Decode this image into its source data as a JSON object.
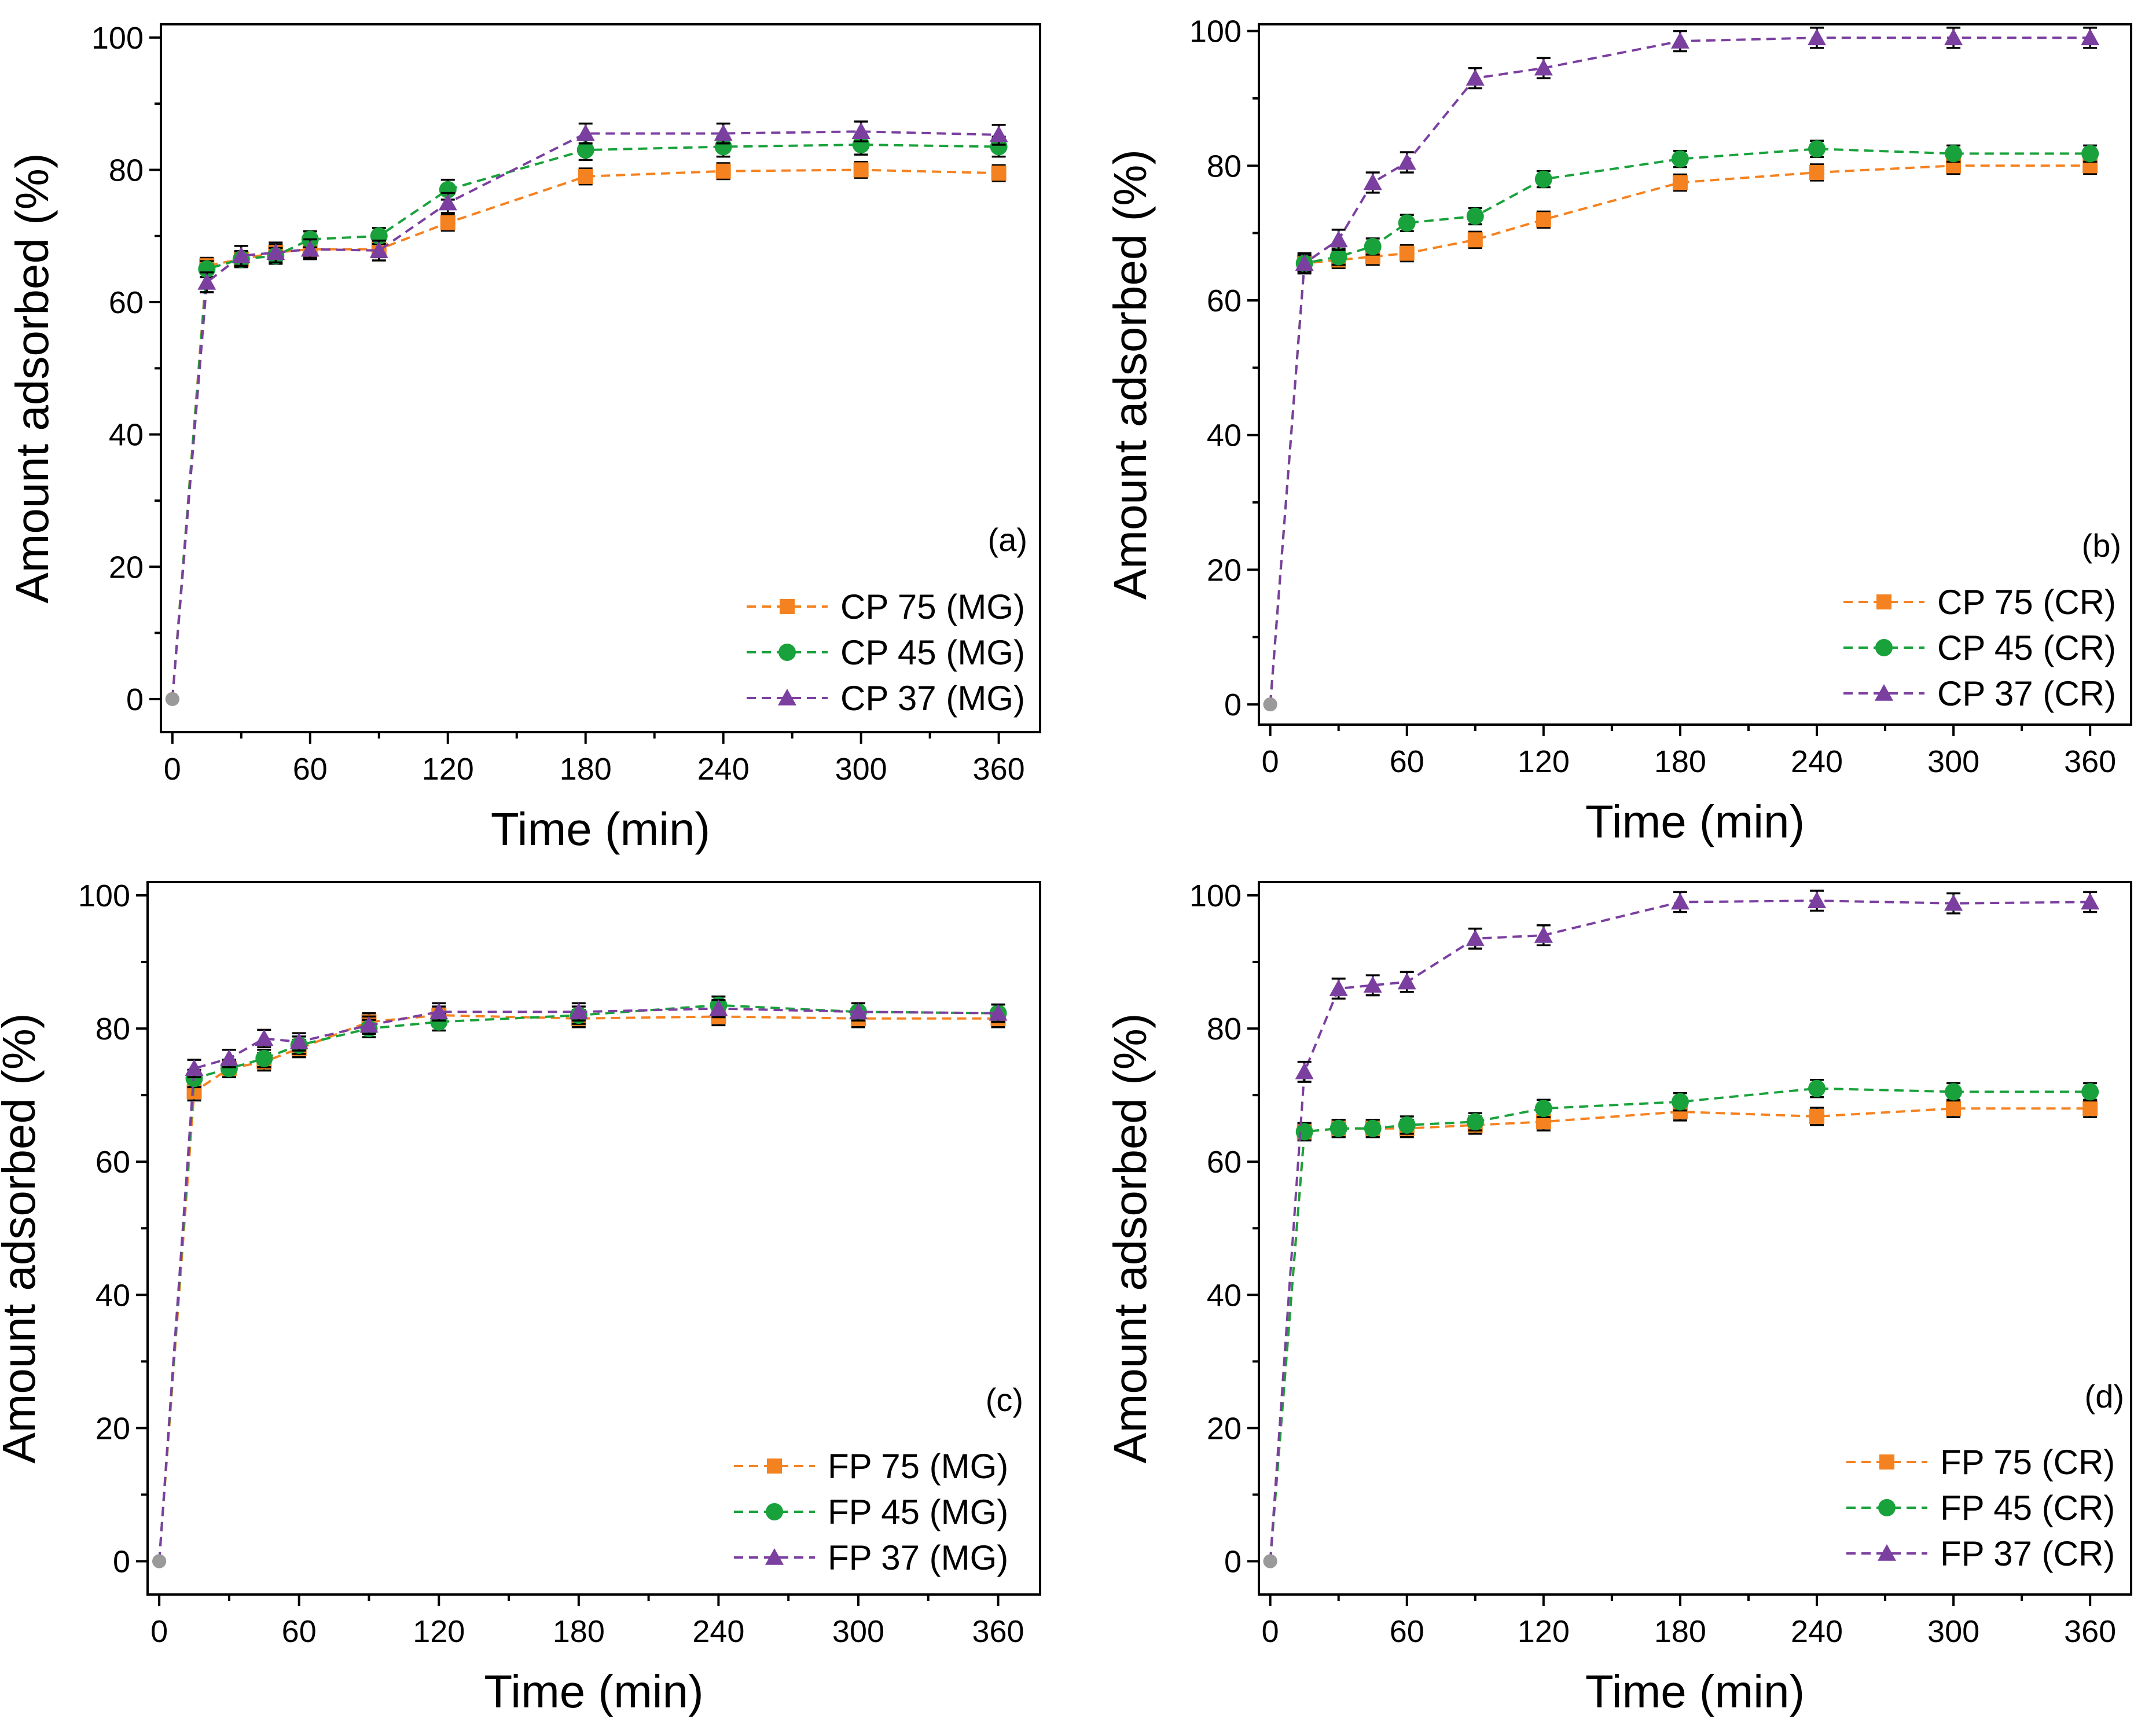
{
  "chart_data": [
    {
      "type": "line",
      "panel_label": "(a)",
      "xlabel": "Time (min)",
      "ylabel": "Amount adsorbed (%)",
      "xlim": [
        -5,
        378
      ],
      "ylim": [
        -5,
        102
      ],
      "xticks": [
        0,
        60,
        120,
        180,
        240,
        300,
        360
      ],
      "yticks": [
        0,
        20,
        40,
        60,
        80,
        100
      ],
      "legend_position": "bottom-right",
      "series": [
        {
          "name": "CP 75 (MG)",
          "color": "#f58220",
          "marker": "square",
          "x": [
            0,
            15,
            30,
            45,
            60,
            90,
            120,
            180,
            240,
            300,
            360
          ],
          "y": [
            0,
            65.5,
            66.5,
            67.5,
            68,
            68,
            72,
            79,
            79.8,
            80,
            79.5
          ],
          "err": [
            0,
            1.2,
            1.2,
            1.2,
            1.2,
            1.2,
            1.2,
            1.2,
            1.2,
            1.2,
            1.2
          ]
        },
        {
          "name": "CP 45 (MG)",
          "color": "#19a23c",
          "marker": "circle",
          "x": [
            0,
            15,
            30,
            45,
            60,
            90,
            120,
            180,
            240,
            300,
            360
          ],
          "y": [
            0,
            65,
            66.5,
            67,
            69.5,
            70,
            77,
            83,
            83.5,
            83.8,
            83.5
          ],
          "err": [
            0,
            1.2,
            1.2,
            1.2,
            1.2,
            1.2,
            1.5,
            1.5,
            1.5,
            1.5,
            1.5
          ]
        },
        {
          "name": "CP 37 (MG)",
          "color": "#7b3fa0",
          "marker": "triangle",
          "x": [
            0,
            15,
            30,
            45,
            60,
            90,
            120,
            180,
            240,
            300,
            360
          ],
          "y": [
            0,
            63,
            67,
            67.5,
            68,
            67.8,
            75,
            85.5,
            85.5,
            85.8,
            85.3
          ],
          "err": [
            0,
            1.5,
            1.5,
            1.5,
            1.5,
            1.5,
            1.5,
            1.5,
            1.5,
            1.5,
            1.5
          ]
        }
      ]
    },
    {
      "type": "line",
      "panel_label": "(b)",
      "xlabel": "Time (min)",
      "ylabel": "Amount adsorbed (%)",
      "xlim": [
        -5,
        378
      ],
      "ylim": [
        -3,
        101
      ],
      "xticks": [
        0,
        60,
        120,
        180,
        240,
        300,
        360
      ],
      "yticks": [
        0,
        20,
        40,
        60,
        80,
        100
      ],
      "legend_position": "bottom-right",
      "series": [
        {
          "name": "CP 75 (CR)",
          "color": "#f58220",
          "marker": "square",
          "x": [
            0,
            15,
            30,
            45,
            60,
            90,
            120,
            180,
            240,
            300,
            360
          ],
          "y": [
            0,
            65.5,
            66,
            66.5,
            67,
            69,
            72,
            77.5,
            79,
            80,
            80
          ],
          "err": [
            0,
            1.2,
            1.2,
            1.2,
            1.2,
            1.2,
            1.2,
            1.2,
            1.2,
            1.2,
            1.2
          ]
        },
        {
          "name": "CP 45 (CR)",
          "color": "#19a23c",
          "marker": "circle",
          "x": [
            0,
            15,
            30,
            45,
            60,
            90,
            120,
            180,
            240,
            300,
            360
          ],
          "y": [
            0,
            65.5,
            66.5,
            68,
            71.5,
            72.5,
            78,
            81,
            82.5,
            81.8,
            81.8
          ],
          "err": [
            0,
            1.2,
            1.2,
            1.2,
            1.2,
            1.2,
            1.2,
            1.2,
            1.2,
            1.2,
            1.2
          ]
        },
        {
          "name": "CP 37 (CR)",
          "color": "#7b3fa0",
          "marker": "triangle",
          "x": [
            0,
            15,
            30,
            45,
            60,
            90,
            120,
            180,
            240,
            300,
            360
          ],
          "y": [
            0,
            65.5,
            69,
            77.5,
            80.5,
            93,
            94.5,
            98.5,
            99,
            99,
            99
          ],
          "err": [
            0,
            1.5,
            1.5,
            1.5,
            1.5,
            1.5,
            1.5,
            1.5,
            1.5,
            1.5,
            1.5
          ]
        }
      ]
    },
    {
      "type": "line",
      "panel_label": "(c)",
      "xlabel": "Time (min)",
      "ylabel": "Amount adsorbed (%)",
      "xlim": [
        -5,
        378
      ],
      "ylim": [
        -5,
        102
      ],
      "xticks": [
        0,
        60,
        120,
        180,
        240,
        300,
        360
      ],
      "yticks": [
        0,
        20,
        40,
        60,
        80,
        100
      ],
      "legend_position": "bottom-right",
      "series": [
        {
          "name": "FP 75 (MG)",
          "color": "#f58220",
          "marker": "square",
          "x": [
            0,
            15,
            30,
            45,
            60,
            90,
            120,
            180,
            240,
            300,
            360
          ],
          "y": [
            0,
            70.5,
            74,
            75,
            77,
            81,
            82,
            81.5,
            81.8,
            81.5,
            81.5
          ],
          "err": [
            0,
            1.3,
            1.3,
            1.3,
            1.3,
            1.3,
            1.3,
            1.3,
            1.3,
            1.3,
            1.3
          ]
        },
        {
          "name": "FP 45 (MG)",
          "color": "#19a23c",
          "marker": "circle",
          "x": [
            0,
            15,
            30,
            45,
            60,
            90,
            120,
            180,
            240,
            300,
            360
          ],
          "y": [
            0,
            72.5,
            74,
            75.5,
            77.5,
            80,
            81,
            82,
            83.5,
            82.5,
            82.3
          ],
          "err": [
            0,
            1.3,
            1.3,
            1.3,
            1.3,
            1.3,
            1.3,
            1.3,
            1.3,
            1.3,
            1.3
          ]
        },
        {
          "name": "FP 37 (MG)",
          "color": "#7b3fa0",
          "marker": "triangle",
          "x": [
            0,
            15,
            30,
            45,
            60,
            90,
            120,
            180,
            240,
            300,
            360
          ],
          "y": [
            0,
            74,
            75.5,
            78.5,
            78,
            80.5,
            82.5,
            82.5,
            83,
            82.5,
            82.3
          ],
          "err": [
            0,
            1.3,
            1.3,
            1.3,
            1.3,
            1.3,
            1.3,
            1.3,
            1.3,
            1.3,
            1.3
          ]
        }
      ]
    },
    {
      "type": "line",
      "panel_label": "(d)",
      "xlabel": "Time (min)",
      "ylabel": "Amount adsorbed (%)",
      "xlim": [
        -5,
        378
      ],
      "ylim": [
        -5,
        102
      ],
      "xticks": [
        0,
        60,
        120,
        180,
        240,
        300,
        360
      ],
      "yticks": [
        0,
        20,
        40,
        60,
        80,
        100
      ],
      "legend_position": "bottom-right",
      "series": [
        {
          "name": "FP 75 (CR)",
          "color": "#f58220",
          "marker": "square",
          "x": [
            0,
            15,
            30,
            45,
            60,
            90,
            120,
            180,
            240,
            300,
            360
          ],
          "y": [
            0,
            64.5,
            65,
            65,
            65,
            65.5,
            66,
            67.5,
            66.8,
            68,
            68
          ],
          "err": [
            0,
            1.3,
            1.3,
            1.3,
            1.3,
            1.3,
            1.3,
            1.3,
            1.3,
            1.3,
            1.3
          ]
        },
        {
          "name": "FP 45 (CR)",
          "color": "#19a23c",
          "marker": "circle",
          "x": [
            0,
            15,
            30,
            45,
            60,
            90,
            120,
            180,
            240,
            300,
            360
          ],
          "y": [
            0,
            64.5,
            65,
            65,
            65.5,
            66,
            68,
            69,
            71,
            70.5,
            70.5
          ],
          "err": [
            0,
            1.3,
            1.3,
            1.3,
            1.3,
            1.3,
            1.3,
            1.3,
            1.3,
            1.3,
            1.3
          ]
        },
        {
          "name": "FP 37 (CR)",
          "color": "#7b3fa0",
          "marker": "triangle",
          "x": [
            0,
            15,
            30,
            45,
            60,
            90,
            120,
            180,
            240,
            300,
            360
          ],
          "y": [
            0,
            73.5,
            86,
            86.5,
            87,
            93.5,
            94,
            99,
            99.2,
            98.8,
            99
          ],
          "err": [
            0,
            1.5,
            1.5,
            1.5,
            1.5,
            1.5,
            1.5,
            1.5,
            1.5,
            1.5,
            1.5
          ]
        }
      ]
    }
  ]
}
